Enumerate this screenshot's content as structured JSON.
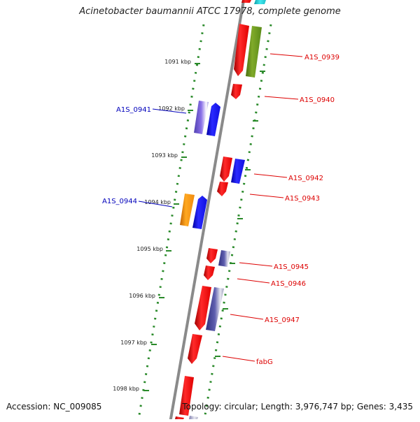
{
  "title": "Acinetobacter baumannii ATCC 17978, complete genome",
  "footer": {
    "accession": "Accession: NC_009085",
    "stats": "Topology: circular; Length: 3,976,747 bp; Genes: 3,435"
  },
  "colors": {
    "red": "#ee1111",
    "blue": "#1f1fee",
    "purple": "#7a5fd8",
    "orange": "#f59a17",
    "olive": "#6a9a1a",
    "cyan": "#2ad0d8",
    "slate": "#50509a",
    "tick_green": "#2a8a2a",
    "backbone": "#888888",
    "label_red": "#dd0000",
    "label_blue": "#0000bb"
  },
  "ruler": {
    "unit": "kbp",
    "ticks": [
      "1091 kbp",
      "1092 kbp",
      "1093 kbp",
      "1094 kbp",
      "1095 kbp",
      "1096 kbp",
      "1097 kbp",
      "1098 kbp"
    ]
  },
  "gene_labels": {
    "a1s_0939": "A1S_0939",
    "a1s_0940": "A1S_0940",
    "a1s_0941": "A1S_0941",
    "a1s_0942": "A1S_0942",
    "a1s_0943": "A1S_0943",
    "a1s_0944": "A1S_0944",
    "a1s_0945": "A1S_0945",
    "a1s_0946": "A1S_0946",
    "a1s_0947": "A1S_0947",
    "fabg": "fabG"
  }
}
